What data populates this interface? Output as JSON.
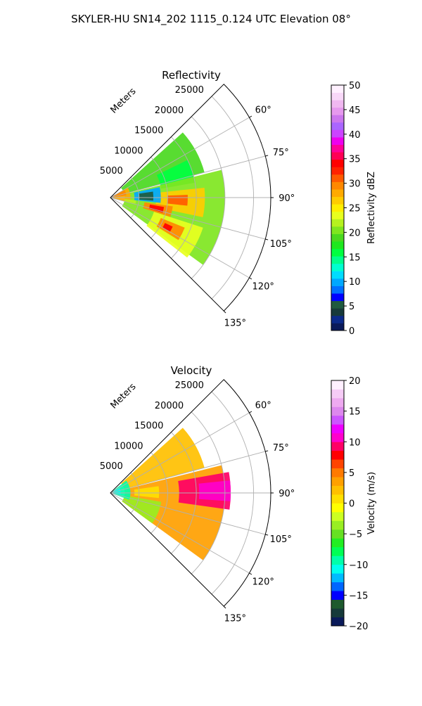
{
  "figure": {
    "suptitle": "SKYLER-HU  SN14_202  1115_0.124 UTC Elevation 08°"
  },
  "chart_data": [
    {
      "type": "heatmap",
      "projection": "polar-sector",
      "title": "Reflectivity",
      "range_label": "Meters",
      "range_max": 28000,
      "range_ticks": [
        5000,
        10000,
        15000,
        20000,
        25000
      ],
      "azimuth_range": [
        45,
        135
      ],
      "azimuth_ticks": [
        60,
        75,
        90,
        105,
        120,
        135
      ],
      "azimuth_tick_suffix": "°",
      "grid": true,
      "colorbar": {
        "label": "Reflectivity dBZ",
        "min": 0,
        "max": 50,
        "ticks": [
          0,
          5,
          10,
          15,
          20,
          25,
          30,
          35,
          40,
          45,
          50
        ],
        "colors": [
          "#0a1a5a",
          "#0b2a8a",
          "#173a3a",
          "#1f5a3f",
          "#0000ff",
          "#0070ff",
          "#00a8ff",
          "#00dcff",
          "#00ffd0",
          "#00ff8c",
          "#00ff40",
          "#1fe81f",
          "#4ad91f",
          "#7fe61f",
          "#b6f21f",
          "#e8ff1f",
          "#ffee00",
          "#ffcc00",
          "#ffaa00",
          "#ff8800",
          "#ff5a00",
          "#ff2200",
          "#ff0000",
          "#ff0055",
          "#ff0099",
          "#ee00ee",
          "#cc44ff",
          "#aa66ff",
          "#cc77ee",
          "#e699ee",
          "#f0b8f0",
          "#f8d8f8",
          "#fff0ff"
        ]
      },
      "echo_regions": [
        {
          "az": [
            48,
            75
          ],
          "r": [
            2500,
            17000
          ],
          "value": 19
        },
        {
          "az": [
            64,
            80
          ],
          "r": [
            9000,
            15000
          ],
          "value": 16
        },
        {
          "az": [
            76,
            126
          ],
          "r": [
            2500,
            20000
          ],
          "value": 20
        },
        {
          "az": [
            84,
            102
          ],
          "r": [
            8000,
            16500
          ],
          "value": 26
        },
        {
          "az": [
            88,
            96
          ],
          "r": [
            10000,
            13500
          ],
          "value": 31
        },
        {
          "az": [
            98,
            108
          ],
          "r": [
            6000,
            11000
          ],
          "value": 29
        },
        {
          "az": [
            100,
            106
          ],
          "r": [
            7000,
            9500
          ],
          "value": 34
        },
        {
          "az": [
            108,
            128
          ],
          "r": [
            8000,
            17000
          ],
          "value": 24
        },
        {
          "az": [
            112,
            122
          ],
          "r": [
            9500,
            14000
          ],
          "value": 30
        },
        {
          "az": [
            115,
            120
          ],
          "r": [
            10500,
            12000
          ],
          "value": 34
        },
        {
          "az": [
            78,
            96
          ],
          "r": [
            4200,
            8800
          ],
          "value": 10
        },
        {
          "az": [
            82,
            94
          ],
          "r": [
            5000,
            7500
          ],
          "value": 6
        },
        {
          "az": [
            60,
            105
          ],
          "r": [
            0,
            3500
          ],
          "value": 28
        },
        {
          "az": [
            62,
            82
          ],
          "r": [
            0,
            2800
          ],
          "value": 30
        },
        {
          "az": [
            96,
            104
          ],
          "r": [
            2500,
            4500
          ],
          "value": 22
        }
      ]
    },
    {
      "type": "heatmap",
      "projection": "polar-sector",
      "title": "Velocity",
      "range_label": "Meters",
      "range_max": 28000,
      "range_ticks": [
        5000,
        10000,
        15000,
        20000,
        25000
      ],
      "azimuth_range": [
        45,
        135
      ],
      "azimuth_ticks": [
        60,
        75,
        90,
        105,
        120,
        135
      ],
      "azimuth_tick_suffix": "°",
      "grid": true,
      "colorbar": {
        "label": "Velocity (m/s)",
        "min": -20,
        "max": 20,
        "ticks": [
          -20,
          -15,
          -10,
          -5,
          0,
          5,
          10,
          15,
          20
        ],
        "colors": [
          "#0a1a5a",
          "#163a3a",
          "#1e5a2e",
          "#0000ff",
          "#0066ff",
          "#00bbff",
          "#00ffee",
          "#00ffaa",
          "#00ff55",
          "#22ee22",
          "#66e022",
          "#99ee22",
          "#ccff22",
          "#ffff00",
          "#ffe000",
          "#ffc000",
          "#ffa000",
          "#ff7a00",
          "#ff4400",
          "#ff0000",
          "#ff0066",
          "#ff00cc",
          "#ee00ff",
          "#cc55ff",
          "#dd88ee",
          "#eeaaf0",
          "#f6ccf6",
          "#fff0ff"
        ]
      },
      "echo_regions": [
        {
          "az": [
            48,
            75
          ],
          "r": [
            2500,
            17000
          ],
          "value": 2
        },
        {
          "az": [
            76,
            126
          ],
          "r": [
            2500,
            20000
          ],
          "value": 3
        },
        {
          "az": [
            80,
            98
          ],
          "r": [
            12000,
            21000
          ],
          "value": 9
        },
        {
          "az": [
            84,
            94
          ],
          "r": [
            15500,
            21000
          ],
          "value": 10
        },
        {
          "az": [
            100,
            126
          ],
          "r": [
            2500,
            9000
          ],
          "value": -4
        },
        {
          "az": [
            52,
            110
          ],
          "r": [
            0,
            3500
          ],
          "value": -9
        },
        {
          "az": [
            58,
            100
          ],
          "r": [
            0,
            1800
          ],
          "value": -11
        },
        {
          "az": [
            82,
            96
          ],
          "r": [
            4200,
            8500
          ],
          "value": 1
        }
      ]
    }
  ]
}
